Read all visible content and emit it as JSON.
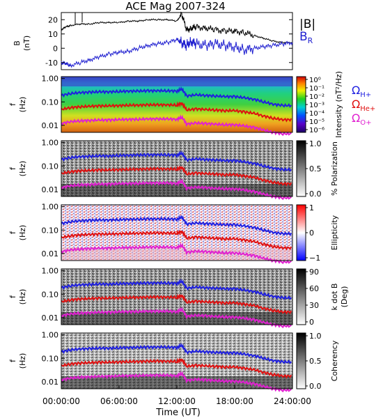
{
  "title": "ACE Mag 2007-324",
  "xlabel": "Time (UT)",
  "xticks": [
    "00:00:00",
    "06:00:00",
    "12:00:00",
    "18:00:00",
    "24:00:00"
  ],
  "legend": {
    "b_total": "|B|",
    "b_r_main": "B",
    "b_r_sub": "R",
    "omega_h": "H+",
    "omega_he": "He+",
    "omega_o": "O+"
  },
  "colors": {
    "b_total": "#000000",
    "b_r": "#1f1fd0",
    "omega_h": "#1f1fe0",
    "omega_he": "#e01010",
    "omega_o": "#e020d0"
  },
  "chart_data": [
    {
      "type": "line",
      "ylabel": "B",
      "yunit": "(nT)",
      "x_range_hours": [
        0,
        24
      ],
      "ylim": [
        -15,
        25
      ],
      "yticks": [
        "20",
        "10",
        "0",
        "-10"
      ],
      "series": [
        {
          "name": "|B|",
          "x": [
            0,
            0.5,
            1,
            2,
            3,
            4,
            5,
            6,
            7,
            8,
            9,
            10,
            11,
            12,
            12.5,
            13,
            13.5,
            14,
            15,
            16,
            17,
            18,
            19,
            20,
            21,
            22,
            23,
            24
          ],
          "values": [
            13,
            15,
            16,
            17,
            17,
            18,
            18,
            18,
            19,
            19,
            20,
            20,
            20,
            19,
            24,
            13,
            14,
            15,
            14,
            13,
            12,
            12,
            11,
            9,
            7,
            5,
            4,
            4
          ]
        },
        {
          "name": "B_R",
          "x": [
            0,
            0.5,
            1,
            2,
            3,
            4,
            5,
            6,
            7,
            8,
            9,
            10,
            11,
            12,
            12.5,
            13,
            13.5,
            14,
            15,
            16,
            17,
            18,
            19,
            20,
            21,
            22,
            23,
            24
          ],
          "values": [
            -10,
            -11,
            -12,
            -10,
            -8,
            -6,
            -4,
            -3,
            -2,
            0,
            2,
            3,
            4,
            6,
            4,
            2,
            5,
            3,
            2,
            3,
            2,
            1,
            -1,
            0,
            1,
            2,
            3,
            4
          ]
        }
      ]
    },
    {
      "type": "heatmap",
      "ylabel": "f",
      "yunit": "(Hz)",
      "yticks": [
        "1.00",
        "0.10",
        "0.01"
      ],
      "colorbar": {
        "label": "Intensity (nT²/Hz)",
        "ticks": [
          "10⁰",
          "10⁻¹",
          "10⁻²",
          "10⁻³",
          "10⁻⁴",
          "10⁻⁵",
          "10⁻⁶"
        ]
      },
      "lines": [
        "Ω_H+",
        "Ω_He+",
        "Ω_O+"
      ]
    },
    {
      "type": "heatmap",
      "ylabel": "f",
      "yunit": "(Hz)",
      "yticks": [
        "1.00",
        "0.10",
        "0.01"
      ],
      "colorbar": {
        "label": "% Polarization",
        "ticks": [
          "1.0",
          "0.5",
          "0.0"
        ]
      }
    },
    {
      "type": "heatmap",
      "ylabel": "f",
      "yunit": "(Hz)",
      "yticks": [
        "1.00",
        "0.10",
        "0.01"
      ],
      "colorbar": {
        "label": "Ellipticity",
        "ticks": [
          "1",
          "0",
          "−1"
        ]
      }
    },
    {
      "type": "heatmap",
      "ylabel": "f",
      "yunit": "(Hz)",
      "yticks": [
        "1.00",
        "0.10",
        "0.01"
      ],
      "colorbar": {
        "label": "k dot B",
        "sublabel": "(Deg)",
        "ticks": [
          "90",
          "60",
          "30",
          "0"
        ]
      }
    },
    {
      "type": "heatmap",
      "ylabel": "f",
      "yunit": "(Hz)",
      "yticks": [
        "1.00",
        "0.10",
        "0.01"
      ],
      "colorbar": {
        "label": "Coherency",
        "ticks": [
          "1.0",
          "0.5",
          "0.0"
        ]
      }
    }
  ],
  "gyrofrequency_lines": {
    "x_hours": [
      0,
      1,
      2,
      3,
      4,
      5,
      6,
      7,
      8,
      9,
      10,
      11,
      12,
      12.5,
      13,
      14,
      15,
      16,
      17,
      18,
      19,
      20,
      21,
      22,
      23,
      24
    ],
    "omega_h_hz": [
      0.19,
      0.23,
      0.25,
      0.26,
      0.27,
      0.27,
      0.28,
      0.29,
      0.29,
      0.3,
      0.3,
      0.3,
      0.29,
      0.35,
      0.18,
      0.2,
      0.19,
      0.18,
      0.17,
      0.17,
      0.15,
      0.13,
      0.1,
      0.08,
      0.07,
      0.07
    ]
  }
}
